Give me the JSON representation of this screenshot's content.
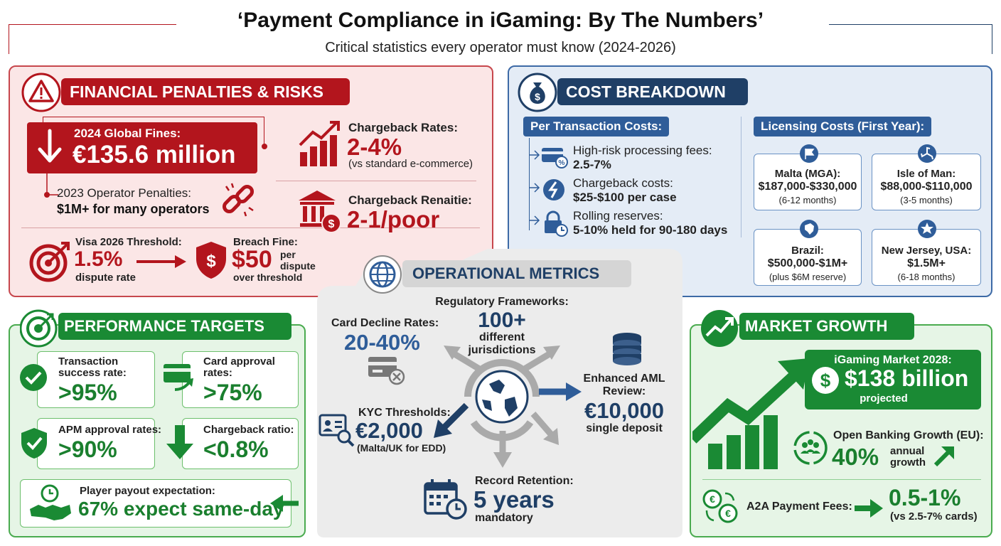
{
  "header": {
    "title": "‘Payment Compliance in iGaming: By The Numbers’",
    "subtitle": "Critical statistics every operator must know (2024-2026)"
  },
  "colors": {
    "red": "#b3151d",
    "navy": "#1f3f66",
    "blue": "#2f5d99",
    "green": "#1a8a34",
    "gray": "#d9d9d9"
  },
  "financial": {
    "title": "FINANCIAL PENALTIES & RISKS",
    "fines_label": "2024 Global Fines:",
    "fines_value": "€135.6 million",
    "penalties_label": "2023 Operator Penalties:",
    "penalties_value": "$1M+ for many operators",
    "cb_rates_label": "Chargeback Rates:",
    "cb_rates_value": "2-4%",
    "cb_rates_note": "(vs standard e-commerce)",
    "cb_pen_label": "Chargeback Renaitie:",
    "cb_pen_value": "2-1/poor",
    "visa_label": "Visa 2026 Threshold:",
    "visa_value": "1.5%",
    "visa_note": "dispute rate",
    "breach_label": "Breach Fine:",
    "breach_value": "$50",
    "breach_note1": "per",
    "breach_note2": "dispute",
    "breach_note3": "over threshold"
  },
  "cost": {
    "title": "COST BREAKDOWN",
    "per_tx_title": "Per Transaction Costs:",
    "items": [
      {
        "label": "High-risk processing fees:",
        "value": "2.5-7%",
        "icon": "card-percent-icon"
      },
      {
        "label": "Chargeback costs:",
        "value": "$25-$100 per case",
        "icon": "chargeback-icon"
      },
      {
        "label": "Rolling reserves:",
        "value": "5-10% held for 90-180 days",
        "icon": "lock-clock-icon"
      }
    ],
    "lic_title": "Licensing Costs (First Year):",
    "licenses": [
      {
        "name": "Malta (MGA):",
        "cost": "$187,000-$330,000",
        "time": "(6-12 months)",
        "icon": "flag-icon"
      },
      {
        "name": "Isle of Man:",
        "cost": "$88,000-$110,000",
        "time": "(3-5 months)",
        "icon": "triskelion-icon"
      },
      {
        "name": "Brazil:",
        "cost": "$500,000-$1M+",
        "time": "(plus $6M reserve)",
        "icon": "brazil-map-icon"
      },
      {
        "name": "New Jersey, USA:",
        "cost": "$1.5M+",
        "time": "(6-18 months)",
        "icon": "star-icon"
      }
    ]
  },
  "ops": {
    "title": "OPERATIONAL METRICS",
    "reg_label": "Regulatory Frameworks:",
    "reg_value": "100+",
    "reg_note1": "different",
    "reg_note2": "jurisdictions",
    "decline_label": "Card Decline Rates:",
    "decline_value": "20-40%",
    "aml_label1": "Enhanced AML",
    "aml_label2": "Review:",
    "aml_value": "€10,000",
    "aml_note": "single deposit",
    "kyc_label": "KYC Thresholds:",
    "kyc_value": "€2,000",
    "kyc_note": "(Malta/UK for EDD)",
    "rec_label": "Record Retention:",
    "rec_value": "5 years",
    "rec_note": "mandatory"
  },
  "perf": {
    "title": "PERFORMANCE TARGETS",
    "tx_label1": "Transaction",
    "tx_label2": "success rate:",
    "tx_value": ">95%",
    "card_label1": "Card approval",
    "card_label2": "rates:",
    "card_value": ">75%",
    "apm_label": "APM approval rates:",
    "apm_value": ">90%",
    "cb_label": "Chargeback ratio:",
    "cb_value": "<0.8%",
    "payout_label": "Player payout expectation:",
    "payout_value": "67% expect same-day"
  },
  "market": {
    "title": "MARKET GROWTH",
    "mkt_label": "iGaming Market 2028:",
    "mkt_value": "$138 billion",
    "mkt_note": "projected",
    "ob_label": "Open Banking Growth (EU):",
    "ob_value": "40%",
    "ob_note1": "annual",
    "ob_note2": "growth",
    "a2a_label": "A2A Payment Fees:",
    "a2a_value": "0.5-1%",
    "a2a_note": "(vs 2.5-7% cards)"
  }
}
